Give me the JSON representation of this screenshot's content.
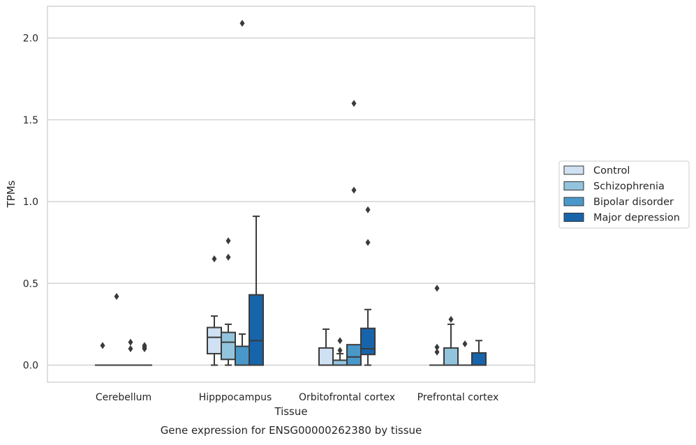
{
  "colors": {
    "background": "#ffffff",
    "grid": "#cccccc",
    "frame": "#cccccc",
    "line": "#3a3a3a",
    "series": [
      "#cfe1f2",
      "#93c4de",
      "#4a98c9",
      "#1764ab"
    ]
  },
  "chart_data": {
    "type": "box",
    "title": "",
    "xlabel": "Tissue",
    "ylabel": "TPMs",
    "caption": "Gene expression for ENSG00000262380 by tissue",
    "ylim": [
      -0.1,
      2.2
    ],
    "yticks": [
      0.0,
      0.5,
      1.0,
      1.5,
      2.0
    ],
    "ytick_labels": [
      "0.0",
      "0.5",
      "1.0",
      "1.5",
      "2.0"
    ],
    "grid": "horizontal",
    "legend_position": "right",
    "categories": [
      "Cerebellum",
      "Hipppocampus",
      "Orbitofrontal cortex",
      "Prefrontal cortex"
    ],
    "series": [
      {
        "name": "Control",
        "boxes": [
          {
            "whislo": 0.0,
            "q1": 0.0,
            "med": 0.0,
            "q3": 0.0,
            "whishi": 0.0,
            "fliers": [
              0.12
            ]
          },
          {
            "whislo": 0.0,
            "q1": 0.07,
            "med": 0.17,
            "q3": 0.23,
            "whishi": 0.3,
            "fliers": [
              0.65
            ]
          },
          {
            "whislo": 0.0,
            "q1": 0.0,
            "med": 0.0,
            "q3": 0.105,
            "whishi": 0.22,
            "fliers": []
          },
          {
            "whislo": 0.0,
            "q1": 0.0,
            "med": 0.0,
            "q3": 0.0,
            "whishi": 0.0,
            "fliers": [
              0.47,
              0.11,
              0.08
            ]
          }
        ]
      },
      {
        "name": "Schizophrenia",
        "boxes": [
          {
            "whislo": 0.0,
            "q1": 0.0,
            "med": 0.0,
            "q3": 0.0,
            "whishi": 0.0,
            "fliers": [
              0.42
            ]
          },
          {
            "whislo": 0.0,
            "q1": 0.035,
            "med": 0.14,
            "q3": 0.2,
            "whishi": 0.25,
            "fliers": [
              0.76,
              0.66
            ]
          },
          {
            "whislo": 0.0,
            "q1": 0.0,
            "med": 0.0,
            "q3": 0.03,
            "whishi": 0.07,
            "fliers": [
              0.15,
              0.09
            ]
          },
          {
            "whislo": 0.0,
            "q1": 0.0,
            "med": 0.0,
            "q3": 0.105,
            "whishi": 0.25,
            "fliers": [
              0.28
            ]
          }
        ]
      },
      {
        "name": "Bipolar disorder",
        "boxes": [
          {
            "whislo": 0.0,
            "q1": 0.0,
            "med": 0.0,
            "q3": 0.0,
            "whishi": 0.0,
            "fliers": [
              0.14,
              0.1
            ]
          },
          {
            "whislo": 0.0,
            "q1": 0.0,
            "med": 0.0,
            "q3": 0.115,
            "whishi": 0.19,
            "fliers": [
              2.09
            ]
          },
          {
            "whislo": 0.0,
            "q1": 0.0,
            "med": 0.05,
            "q3": 0.125,
            "whishi": 0.125,
            "fliers": [
              1.6,
              1.07
            ]
          },
          {
            "whislo": 0.0,
            "q1": 0.0,
            "med": 0.0,
            "q3": 0.0,
            "whishi": 0.0,
            "fliers": [
              0.13
            ]
          }
        ]
      },
      {
        "name": "Major depression",
        "boxes": [
          {
            "whislo": 0.0,
            "q1": 0.0,
            "med": 0.0,
            "q3": 0.0,
            "whishi": 0.0,
            "fliers": [
              0.12,
              0.11,
              0.1
            ]
          },
          {
            "whislo": 0.0,
            "q1": 0.0,
            "med": 0.15,
            "q3": 0.43,
            "whishi": 0.91,
            "fliers": []
          },
          {
            "whislo": 0.0,
            "q1": 0.065,
            "med": 0.1,
            "q3": 0.225,
            "whishi": 0.34,
            "fliers": [
              0.95,
              0.75
            ]
          },
          {
            "whislo": 0.0,
            "q1": 0.0,
            "med": 0.0,
            "q3": 0.075,
            "whishi": 0.15,
            "fliers": []
          }
        ]
      }
    ]
  }
}
